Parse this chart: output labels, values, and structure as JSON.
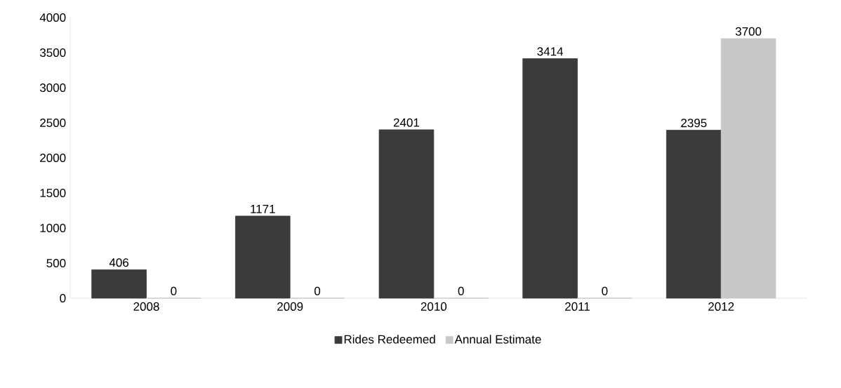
{
  "chart_data": {
    "type": "bar",
    "categories": [
      "2008",
      "2009",
      "2010",
      "2011",
      "2012"
    ],
    "series": [
      {
        "name": "Rides Redeemed",
        "color": "#3b3b3b",
        "values": [
          406,
          1171,
          2401,
          3414,
          2395
        ]
      },
      {
        "name": "Annual Estimate",
        "color": "#c8c8c8",
        "values": [
          0,
          0,
          0,
          0,
          3700
        ]
      }
    ],
    "ylim": [
      0,
      4000
    ],
    "yticks": [
      0,
      500,
      1000,
      1500,
      2000,
      2500,
      3000,
      3500,
      4000
    ],
    "data_labels": true,
    "legend": "bottom",
    "grid": false
  }
}
